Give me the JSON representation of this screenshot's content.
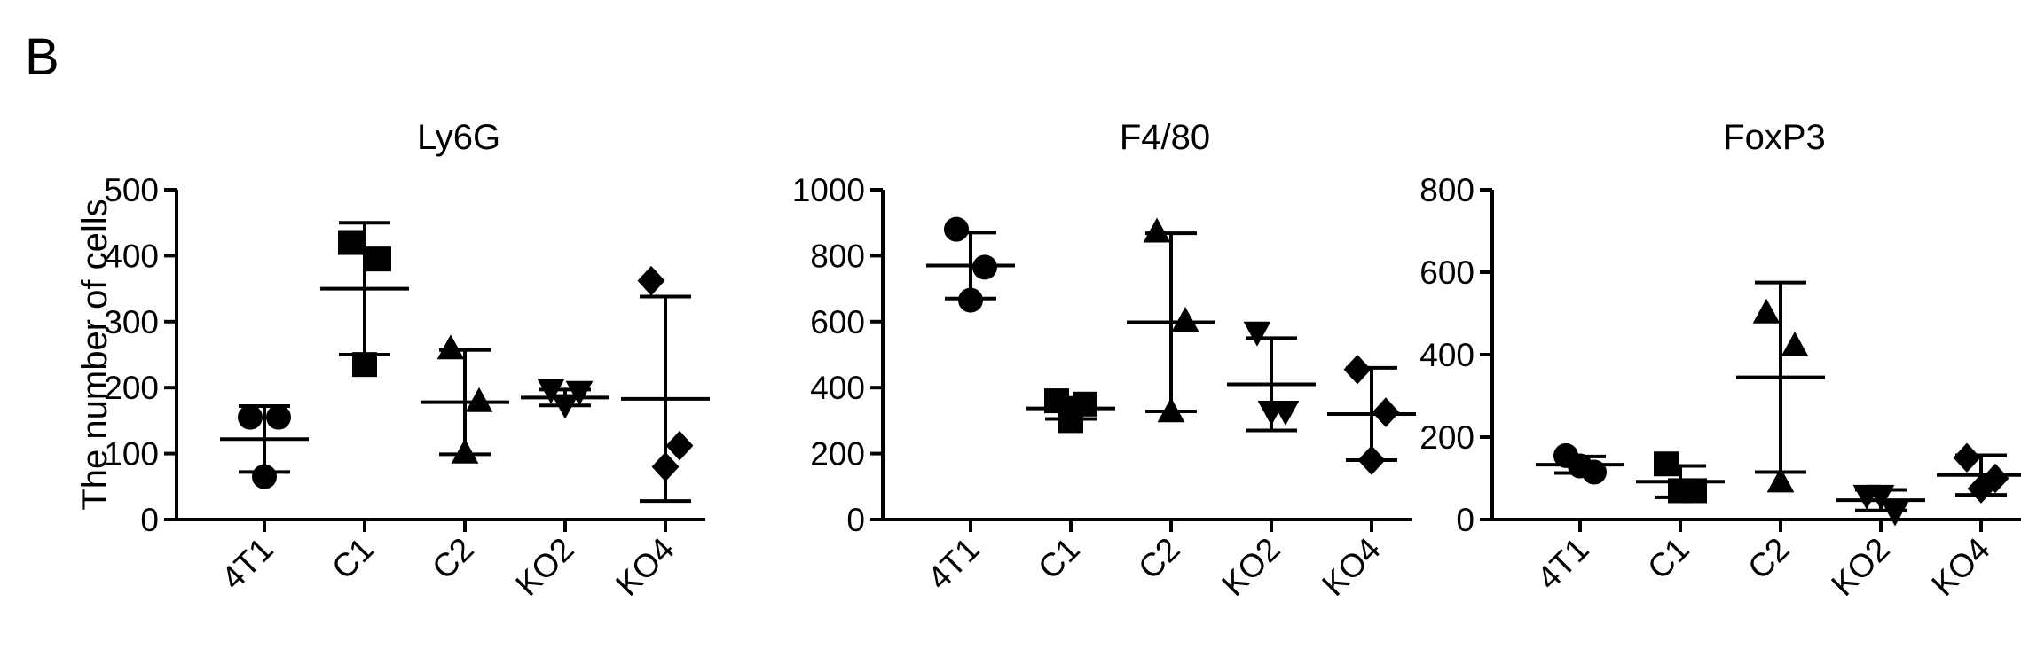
{
  "figure_label": "B",
  "chart_data": [
    {
      "type": "dotplot",
      "title": "Ly6G",
      "ylabel": "The number of cells",
      "categories": [
        "4T1",
        "C1",
        "C2",
        "KO2",
        "KO4"
      ],
      "markers": [
        "circle",
        "square",
        "triangle",
        "triangle-down",
        "diamond"
      ],
      "color": "#000000",
      "points": [
        [
          155,
          155,
          65
        ],
        [
          420,
          395,
          235
        ],
        [
          258,
          178,
          100
        ],
        [
          198,
          195,
          175
        ],
        [
          362,
          112,
          80
        ]
      ],
      "means": [
        122,
        350,
        178,
        185,
        183
      ],
      "sd": [
        50,
        100,
        79,
        12,
        155
      ],
      "ylim": [
        0,
        500
      ],
      "yticks": [
        0,
        100,
        200,
        300,
        400,
        500
      ]
    },
    {
      "type": "dotplot",
      "title": "F4/80",
      "categories": [
        "4T1",
        "C1",
        "C2",
        "KO2",
        "KO4"
      ],
      "markers": [
        "circle",
        "square",
        "triangle",
        "triangle-down",
        "diamond"
      ],
      "color": "#000000",
      "points": [
        [
          880,
          765,
          665
        ],
        [
          360,
          350,
          300
        ],
        [
          870,
          600,
          325
        ],
        [
          570,
          330,
          330
        ],
        [
          455,
          325,
          180
        ]
      ],
      "means": [
        770,
        337,
        598,
        410,
        320
      ],
      "sd": [
        100,
        32,
        270,
        140,
        140
      ],
      "ylim": [
        0,
        1000
      ],
      "yticks": [
        0,
        200,
        400,
        600,
        800,
        1000
      ]
    },
    {
      "type": "dotplot",
      "title": "FoxP3",
      "categories": [
        "4T1",
        "C1",
        "C2",
        "KO2",
        "KO4"
      ],
      "markers": [
        "circle",
        "square",
        "triangle",
        "triangle-down",
        "diamond"
      ],
      "color": "#000000",
      "points": [
        [
          155,
          115,
          130
        ],
        [
          135,
          70,
          70
        ],
        [
          500,
          420,
          90
        ],
        [
          60,
          20,
          60
        ],
        [
          150,
          100,
          75
        ]
      ],
      "means": [
        133,
        92,
        345,
        47,
        108
      ],
      "sd": [
        20,
        38,
        230,
        25,
        48
      ],
      "ylim": [
        0,
        800
      ],
      "yticks": [
        0,
        200,
        400,
        600,
        800
      ]
    }
  ]
}
